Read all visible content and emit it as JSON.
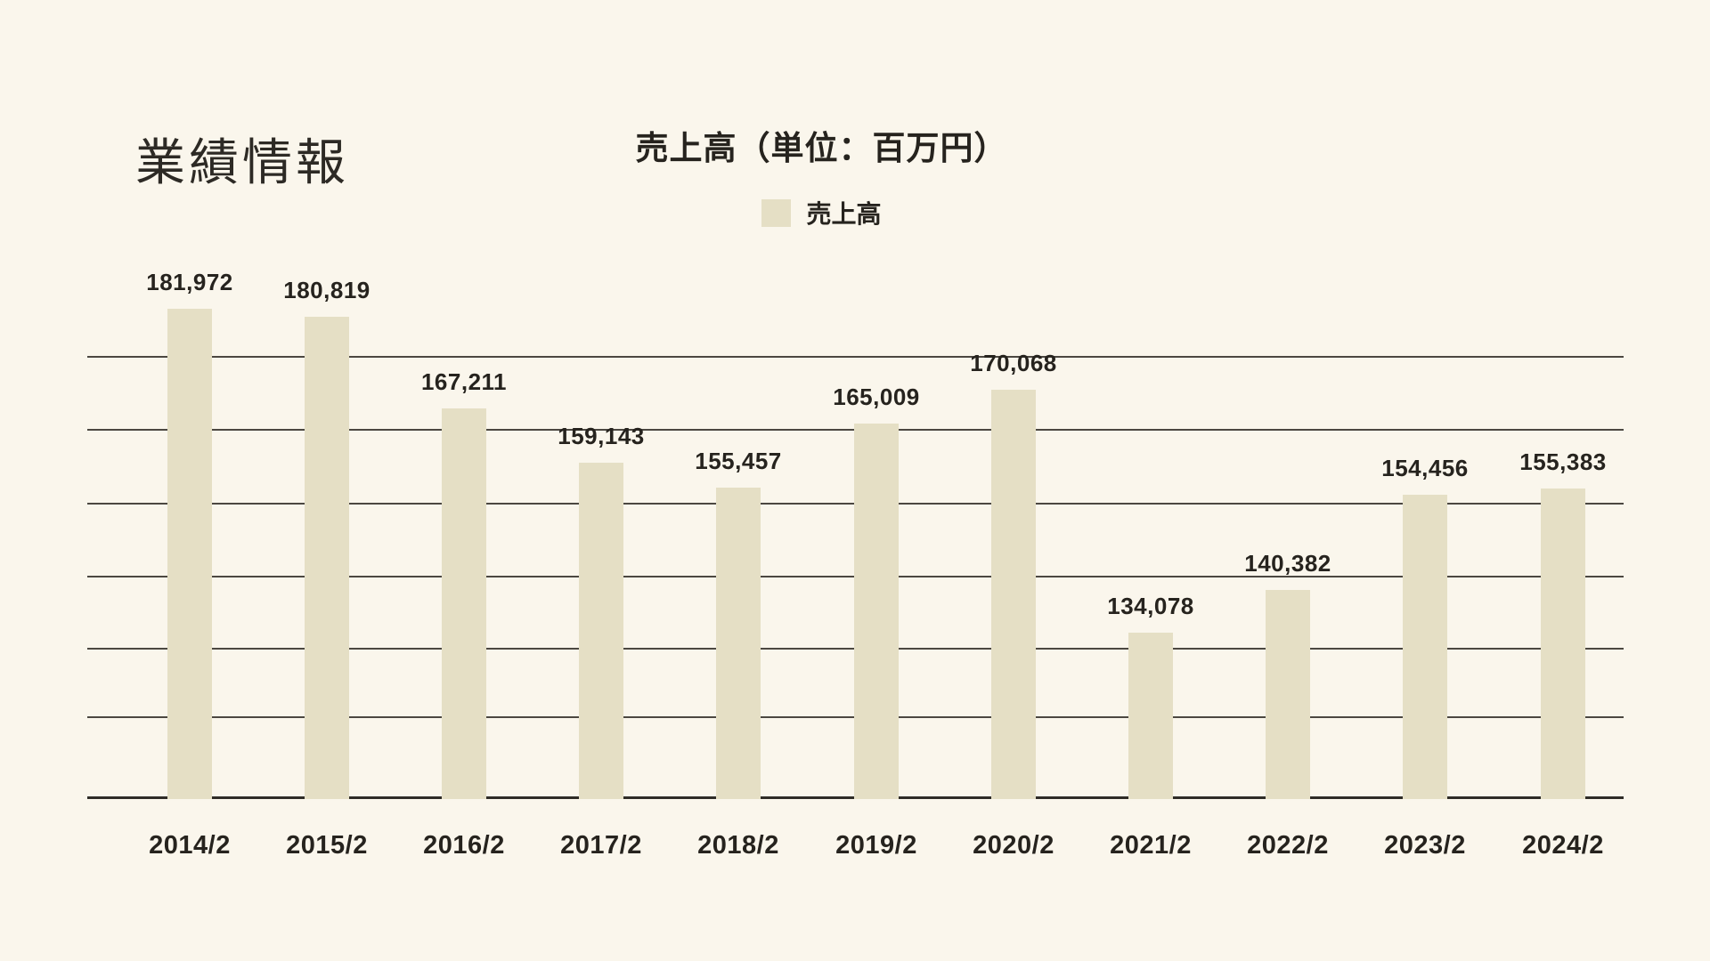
{
  "page": {
    "title": "業績情報"
  },
  "chart": {
    "title": "売上高（単位：百万円）",
    "legend": {
      "label": "売上高"
    }
  },
  "chart_data": {
    "type": "bar",
    "title": "売上高（単位：百万円）",
    "categories": [
      "2014/2",
      "2015/2",
      "2016/2",
      "2017/2",
      "2018/2",
      "2019/2",
      "2020/2",
      "2021/2",
      "2022/2",
      "2023/2",
      "2024/2"
    ],
    "series": [
      {
        "name": "売上高",
        "values": [
          181972,
          180819,
          167211,
          159143,
          155457,
          165009,
          170068,
          134078,
          140382,
          154456,
          155383
        ]
      }
    ],
    "value_labels": [
      "181,972",
      "180,819",
      "167,211",
      "159,143",
      "155,457",
      "165,009",
      "170,068",
      "134,078",
      "140,382",
      "154,456",
      "155,383"
    ],
    "xlabel": "",
    "ylabel": "百万円",
    "ylim": [
      109400,
      196100
    ],
    "grid": true,
    "legend_position": "top"
  },
  "colors": {
    "background": "#faf6ec",
    "bar": "#e5dfc5",
    "gridline": "#4b4741",
    "axis": "#2f2c27",
    "text": "#26231e"
  }
}
